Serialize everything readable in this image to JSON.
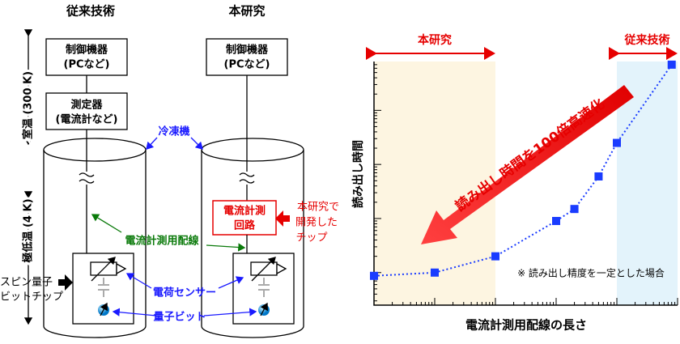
{
  "header": {
    "left": "従来技術",
    "right": "本研究"
  },
  "diagram": {
    "room_temp": "室温 (300 K)",
    "cryo_temp": "極低温 (4 K)",
    "left_controller": [
      "制御機器",
      "(PCなど)"
    ],
    "right_controller": [
      "制御機器",
      "(PCなど)"
    ],
    "meter": [
      "測定器",
      "(電流計など)"
    ],
    "fridge": "冷凍機",
    "circuit": [
      "電流計測",
      "回路"
    ],
    "developed_chip": [
      "本研究で",
      "開発した",
      "チップ"
    ],
    "wiring": "電流計測用配線",
    "spin_chip": [
      "スピン量子",
      "ビットチップ"
    ],
    "charge_sensor": "電荷センサー",
    "qubit": "量子ビット"
  },
  "chart_data": {
    "type": "line",
    "x_label": "電流計測用配線の長さ",
    "y_label": "読み出し時間",
    "annotation": "読み出し時間を100倍高速化",
    "note": "※ 読み出し精度を一定とした場合",
    "x": [
      1,
      10,
      100,
      1000,
      2000,
      5000,
      10000,
      80000
    ],
    "series": [
      {
        "color": "#1a3cff",
        "values": [
          0.87,
          1,
          2,
          9,
          15,
          60,
          250,
          7000
        ]
      }
    ],
    "xlim": [
      1,
      100000
    ],
    "ylim": [
      0.25,
      8000
    ],
    "xticks": [
      1,
      10,
      100,
      1000,
      10000,
      100000
    ],
    "yticks": [
      1,
      10,
      100,
      1000
    ],
    "xscale": "log",
    "yscale": "log",
    "regions": [
      {
        "label": "本研究",
        "x": [
          1,
          100
        ],
        "color": "#fdf5e1"
      },
      {
        "label": "従来技術",
        "x": [
          10000,
          100000
        ],
        "color": "#e3f3fb"
      }
    ],
    "region_label_color": "#e60000"
  }
}
